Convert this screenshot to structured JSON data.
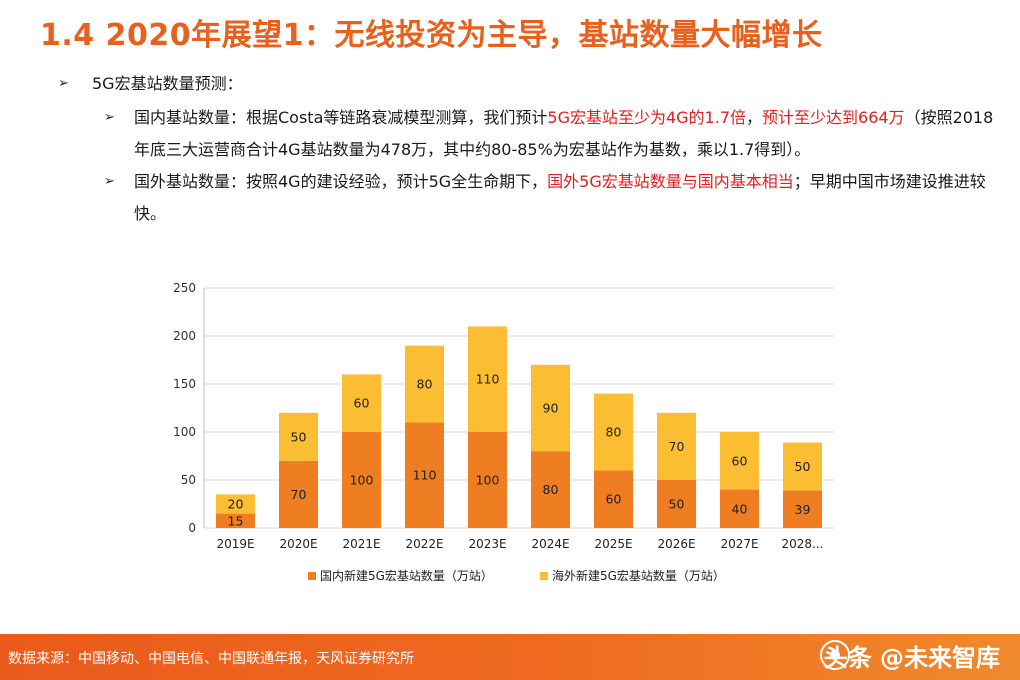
{
  "header": {
    "title": "1.4 2020年展望1：无线投资为主导，基站数量大幅增长"
  },
  "bullets": {
    "level1": "5G宏基站数量预测：",
    "domestic": {
      "p1": "国内基站数量：根据Costa等链路衰减模型测算，我们预计",
      "h1": "5G宏基站至少为4G的1.7倍",
      "p2": "，",
      "h2": "预计至少达到664万",
      "p3": "（按照2018年底三大运营商合计4G基站数量为478万，其中约80-85%为宏基站作为基数，乘以1.7得到）。"
    },
    "overseas": {
      "p1": "国外基站数量：按照4G的建设经验，预计5G全生命期下，",
      "h1": "国外5G宏基站数量与国内基本相当",
      "p2": "；早期中国市场建设推进较快。"
    }
  },
  "chart_data": {
    "type": "bar",
    "stacked": true,
    "categories": [
      "2019E",
      "2020E",
      "2021E",
      "2022E",
      "2023E",
      "2024E",
      "2025E",
      "2026E",
      "2027E",
      "2028..."
    ],
    "series": [
      {
        "name": "国内新建5G宏基站数量（万站）",
        "values": [
          15,
          70,
          100,
          110,
          100,
          80,
          60,
          50,
          40,
          39
        ],
        "color": "#ef7d22"
      },
      {
        "name": "海外新建5G宏基站数量（万站）",
        "values": [
          20,
          50,
          60,
          80,
          110,
          90,
          80,
          70,
          60,
          50
        ],
        "color": "#fbbd32"
      }
    ],
    "yticks": [
      0,
      50,
      100,
      150,
      200,
      250
    ],
    "ylim": [
      0,
      250
    ],
    "grid": true,
    "legend": "bottom"
  },
  "footer": {
    "source": "数据来源：中国移动、中国电信、中国联通年报，天风证券研究所",
    "watermark": "头条 @未来智库"
  }
}
